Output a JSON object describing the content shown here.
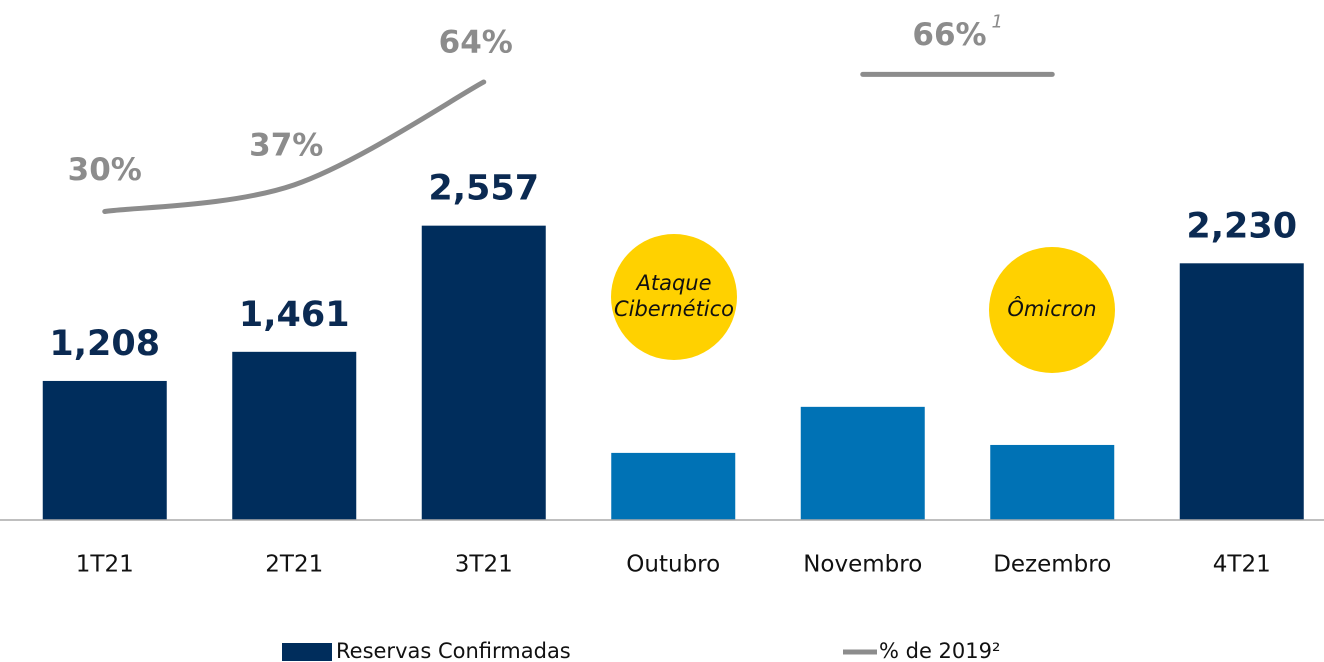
{
  "chart_data": {
    "type": "bar",
    "categories": [
      "1T21",
      "2T21",
      "3T21",
      "Outubro",
      "Novembro",
      "Dezembro",
      "4T21"
    ],
    "ylim": [
      0,
      4500
    ],
    "y2lim": [
      -51,
      85
    ],
    "series": [
      {
        "name": "Reservas Confirmadas",
        "type": "bar",
        "color": "#002d5c",
        "colors": [
          "#002d5c",
          "#002d5c",
          "#002d5c",
          "#0072b5",
          "#0072b5",
          "#0072b5",
          "#002d5c"
        ],
        "values": [
          1208,
          1461,
          2557,
          583,
          983,
          652,
          2230
        ],
        "value_labels": [
          "1,208",
          "1,461",
          "2,557",
          null,
          null,
          null,
          "2,230"
        ]
      },
      {
        "name": "% de 2019²",
        "type": "line",
        "axis": "y2",
        "color": "#8c8c8c",
        "values": [
          30,
          37,
          64,
          null,
          66,
          66,
          null
        ],
        "value_labels": [
          "30%",
          "37%",
          "64%",
          null,
          "66%",
          null,
          null
        ],
        "value_label_superscripts": [
          null,
          null,
          null,
          null,
          "1",
          null,
          null
        ]
      }
    ],
    "annotations": [
      {
        "lines": [
          "Ataque",
          "Cibernético"
        ],
        "color": "#ffd100"
      },
      {
        "lines": [
          "Ômicron"
        ],
        "color": "#ffd100"
      }
    ]
  }
}
